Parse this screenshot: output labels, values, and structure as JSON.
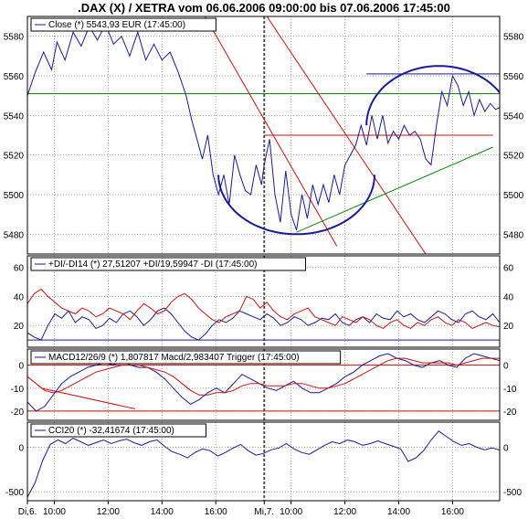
{
  "title": ".DAX (X) / XETRA vom 06.06.2006 09:00:00 bis 07.06.2006 17:45:00",
  "colors": {
    "blue": "#1a1a9a",
    "red": "#cc1111",
    "green": "#118811",
    "grid": "#a0a0a0",
    "axis": "#000000"
  },
  "x_axis": {
    "ticks": [
      {
        "label": "Di,6.",
        "t": 0
      },
      {
        "label": "10:00",
        "t": 1
      },
      {
        "label": "12:00",
        "t": 3
      },
      {
        "label": "14:00",
        "t": 5
      },
      {
        "label": "16:00",
        "t": 7
      },
      {
        "label": "Mi,7.",
        "t": 8.8
      },
      {
        "label": "10:00",
        "t": 9.8
      },
      {
        "label": "12:00",
        "t": 11.8
      },
      {
        "label": "14:00",
        "t": 13.8
      },
      {
        "label": "16:00",
        "t": 15.8
      }
    ],
    "day_separator_t": 8.8,
    "range": [
      0,
      17.55
    ]
  },
  "chart_data": [
    {
      "type": "line",
      "panel": "price",
      "legend": "Close (*) 5543,93 EUR (17:45:00)",
      "ylim": [
        5470,
        5590
      ],
      "ticks": [
        5480,
        5500,
        5520,
        5540,
        5560,
        5580
      ],
      "tick_labels": [
        "5480",
        "5500",
        "5520",
        "5540",
        "5560",
        "5580"
      ],
      "grid": true,
      "series": [
        {
          "points": [
            [
              0,
              5550
            ],
            [
              0.3,
              5562
            ],
            [
              0.6,
              5572
            ],
            [
              0.9,
              5563
            ],
            [
              1.1,
              5577
            ],
            [
              1.4,
              5568
            ],
            [
              1.7,
              5582
            ],
            [
              2.0,
              5575
            ],
            [
              2.3,
              5585
            ],
            [
              2.6,
              5578
            ],
            [
              2.9,
              5586
            ],
            [
              3.2,
              5576
            ],
            [
              3.5,
              5580
            ],
            [
              3.8,
              5570
            ],
            [
              4.1,
              5582
            ],
            [
              4.4,
              5568
            ],
            [
              4.7,
              5576
            ],
            [
              5.0,
              5568
            ],
            [
              5.3,
              5572
            ],
            [
              5.6,
              5562
            ],
            [
              5.9,
              5550
            ],
            [
              6.1,
              5538
            ],
            [
              6.3,
              5528
            ],
            [
              6.5,
              5518
            ],
            [
              6.7,
              5530
            ],
            [
              6.9,
              5510
            ],
            [
              7.1,
              5500
            ],
            [
              7.3,
              5510
            ],
            [
              7.5,
              5495
            ],
            [
              7.7,
              5520
            ],
            [
              7.9,
              5510
            ],
            [
              8.1,
              5502
            ],
            [
              8.3,
              5500
            ],
            [
              8.5,
              5515
            ],
            [
              8.7,
              5505
            ],
            [
              8.8,
              5515
            ],
            [
              9.0,
              5528
            ],
            [
              9.2,
              5500
            ],
            [
              9.4,
              5486
            ],
            [
              9.6,
              5512
            ],
            [
              9.8,
              5490
            ],
            [
              10.0,
              5482
            ],
            [
              10.2,
              5500
            ],
            [
              10.4,
              5488
            ],
            [
              10.6,
              5505
            ],
            [
              10.8,
              5495
            ],
            [
              11.0,
              5505
            ],
            [
              11.2,
              5496
            ],
            [
              11.4,
              5510
            ],
            [
              11.6,
              5500
            ],
            [
              11.8,
              5515
            ],
            [
              12.0,
              5520
            ],
            [
              12.2,
              5525
            ],
            [
              12.4,
              5535
            ],
            [
              12.6,
              5525
            ],
            [
              12.8,
              5540
            ],
            [
              13.0,
              5528
            ],
            [
              13.2,
              5540
            ],
            [
              13.4,
              5526
            ],
            [
              13.6,
              5532
            ],
            [
              13.8,
              5528
            ],
            [
              14.0,
              5535
            ],
            [
              14.2,
              5530
            ],
            [
              14.4,
              5532
            ],
            [
              14.6,
              5528
            ],
            [
              14.8,
              5518
            ],
            [
              15.0,
              5515
            ],
            [
              15.2,
              5535
            ],
            [
              15.4,
              5552
            ],
            [
              15.6,
              5545
            ],
            [
              15.8,
              5560
            ],
            [
              16.0,
              5555
            ],
            [
              16.2,
              5545
            ],
            [
              16.4,
              5552
            ],
            [
              16.6,
              5540
            ],
            [
              16.8,
              5548
            ],
            [
              17.0,
              5542
            ],
            [
              17.2,
              5546
            ],
            [
              17.4,
              5543
            ],
            [
              17.55,
              5544
            ]
          ]
        }
      ],
      "annotations": {
        "hlines": [
          {
            "y": 5551,
            "x": [
              0,
              17.55
            ],
            "color": "green"
          },
          {
            "y": 5530,
            "x": [
              8.8,
              17.3
            ],
            "color": "red"
          },
          {
            "y": 5561,
            "x": [
              12.6,
              17.55
            ],
            "color": "blue"
          }
        ],
        "segments": [
          {
            "from": [
              6.6,
              5590
            ],
            "to": [
              11.5,
              5474
            ],
            "color": "red"
          },
          {
            "from": [
              8.9,
              5590
            ],
            "to": [
              14.8,
              5470
            ],
            "color": "red"
          },
          {
            "from": [
              10.0,
              5481
            ],
            "to": [
              17.3,
              5524
            ],
            "color": "green"
          }
        ],
        "arcs": [
          {
            "center": [
              10.0,
              5510
            ],
            "rx": 2.9,
            "ry": 30,
            "from_deg": 180,
            "to_deg": 360,
            "color": "blue"
          },
          {
            "center": [
              15.3,
              5535
            ],
            "rx": 2.7,
            "ry": 30,
            "from_deg": 0,
            "to_deg": 180,
            "color": "blue"
          }
        ]
      }
    },
    {
      "type": "line",
      "panel": "dmi",
      "legend": "+DI/-DI14 (*) 27,51207 +DI/19,59947 -DI (17:45:00)",
      "ylim": [
        5,
        68
      ],
      "ticks": [
        20,
        40,
        60
      ],
      "tick_labels": [
        "20",
        "40",
        "60"
      ],
      "hlines": [
        10
      ],
      "grid": true,
      "series": [
        {
          "name": "+DI",
          "color": "blue",
          "values": [
            15,
            12,
            10,
            20,
            28,
            25,
            30,
            22,
            26,
            24,
            18,
            20,
            25,
            22,
            28,
            30,
            26,
            20,
            24,
            30,
            32,
            28,
            22,
            16,
            12,
            10,
            14,
            20,
            24,
            22,
            25,
            30,
            28,
            26,
            24,
            28,
            25,
            20,
            22,
            26,
            24,
            20,
            22,
            25,
            24,
            28,
            22,
            20,
            24,
            26,
            22,
            28,
            25,
            24,
            30,
            26,
            28,
            24,
            22,
            26,
            30,
            28,
            24,
            22,
            28,
            30,
            26,
            24,
            28,
            22
          ]
        },
        {
          "name": "-DI",
          "color": "red",
          "values": [
            35,
            42,
            45,
            40,
            36,
            32,
            30,
            28,
            32,
            30,
            26,
            28,
            32,
            30,
            28,
            24,
            30,
            35,
            32,
            28,
            30,
            36,
            40,
            42,
            38,
            32,
            28,
            24,
            22,
            26,
            28,
            30,
            40,
            38,
            32,
            36,
            30,
            26,
            24,
            28,
            30,
            32,
            26,
            24,
            22,
            20,
            26,
            24,
            22,
            26,
            24,
            20,
            18,
            22,
            24,
            20,
            18,
            22,
            20,
            24,
            26,
            22,
            20,
            24,
            22,
            18,
            20,
            22,
            20,
            19
          ]
        }
      ]
    },
    {
      "type": "line",
      "panel": "macd",
      "legend": "MACD12/26/9 (*) 1,807817 Macd/2,983407 Trigger (17:45:00)",
      "ylim": [
        -24,
        7
      ],
      "ticks": [
        -20,
        -10,
        0
      ],
      "tick_labels": [
        "-20",
        "-10",
        "0"
      ],
      "hlines": [
        0,
        -20
      ],
      "grid": true,
      "series": [
        {
          "name": "Macd",
          "color": "blue",
          "values": [
            -16,
            -20,
            -18,
            -13,
            -8,
            -5,
            -3,
            -1,
            0,
            1,
            0,
            2,
            0,
            -1,
            -1,
            -3,
            -6,
            -10,
            -14,
            -17,
            -15,
            -12,
            -10,
            -12,
            -8,
            -4,
            -6,
            -8,
            -10,
            -11,
            -9,
            -7,
            -10,
            -12,
            -12,
            -10,
            -8,
            -5,
            -3,
            0,
            2,
            4,
            5,
            3,
            2,
            0,
            -1,
            1,
            2,
            0,
            -1,
            3,
            5,
            4,
            3,
            2
          ]
        },
        {
          "name": "Trigger",
          "color": "red",
          "values": [
            -5,
            -8,
            -11,
            -12,
            -11,
            -9,
            -7,
            -5,
            -3,
            -2,
            -1,
            0,
            0,
            0,
            -1,
            -2,
            -3,
            -5,
            -8,
            -11,
            -13,
            -13,
            -12,
            -12,
            -11,
            -9,
            -8,
            -8,
            -9,
            -9,
            -9,
            -8,
            -8,
            -9,
            -10,
            -10,
            -9,
            -8,
            -6,
            -4,
            -2,
            0,
            2,
            3,
            3,
            2,
            1,
            1,
            1,
            1,
            0,
            1,
            2,
            3,
            3,
            3
          ]
        }
      ],
      "trend_segment": {
        "from": [
          0.5,
          -10
        ],
        "to": [
          4.0,
          -19
        ]
      }
    },
    {
      "type": "line",
      "panel": "cci",
      "legend": "CCI20 (*) -32,41674 (17:45:00)",
      "ylim": [
        -600,
        280
      ],
      "ticks": [
        -500,
        0
      ],
      "tick_labels": [
        "-500",
        "0"
      ],
      "grid": true,
      "series": [
        {
          "name": "CCI20",
          "color": "blue",
          "values": [
            -560,
            -400,
            -150,
            30,
            80,
            40,
            100,
            60,
            20,
            50,
            80,
            40,
            70,
            90,
            50,
            20,
            60,
            80,
            10,
            -50,
            -80,
            -120,
            -60,
            -20,
            -40,
            -100,
            -60,
            -10,
            30,
            -40,
            -90,
            -70,
            -30,
            -10,
            40,
            -20,
            -60,
            -80,
            -30,
            20,
            60,
            40,
            80,
            60,
            20,
            40,
            70,
            40,
            10,
            -20,
            -160,
            -120,
            -40,
            80,
            180,
            120,
            60,
            20,
            40,
            0,
            -30,
            -10,
            -32
          ]
        }
      ]
    }
  ]
}
